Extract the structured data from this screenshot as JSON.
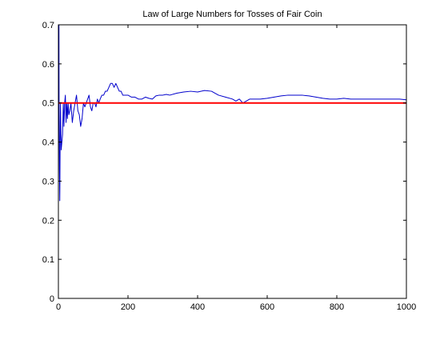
{
  "chart_data": {
    "type": "line",
    "title": "Law of Large Numbers for Tosses of Fair Coin",
    "xlabel": "",
    "ylabel": "",
    "xlim": [
      0,
      1000
    ],
    "ylim": [
      0,
      0.7
    ],
    "xticks": [
      "0",
      "200",
      "400",
      "600",
      "800",
      "1000"
    ],
    "yticks": [
      "0",
      "0.1",
      "0.2",
      "0.3",
      "0.4",
      "0.5",
      "0.6",
      "0.7"
    ],
    "grid": false,
    "series": [
      {
        "color": "#0000cc",
        "x": [
          1,
          2,
          3,
          4,
          5,
          6,
          7,
          8,
          10,
          12,
          14,
          16,
          18,
          20,
          22,
          24,
          26,
          28,
          30,
          33,
          36,
          40,
          44,
          48,
          52,
          56,
          60,
          64,
          68,
          72,
          76,
          80,
          84,
          88,
          92,
          96,
          100,
          104,
          108,
          112,
          116,
          120,
          125,
          130,
          135,
          140,
          145,
          150,
          155,
          160,
          165,
          170,
          175,
          180,
          185,
          190,
          200,
          210,
          220,
          230,
          240,
          250,
          260,
          270,
          280,
          290,
          300,
          310,
          320,
          340,
          360,
          380,
          400,
          420,
          440,
          460,
          480,
          500,
          510,
          520,
          530,
          540,
          550,
          560,
          580,
          600,
          620,
          640,
          660,
          680,
          700,
          720,
          740,
          760,
          780,
          800,
          820,
          840,
          860,
          880,
          900,
          920,
          940,
          960,
          980,
          1000
        ],
        "y": [
          1.0,
          0.5,
          0.33,
          0.25,
          0.4,
          0.5,
          0.43,
          0.38,
          0.4,
          0.42,
          0.5,
          0.44,
          0.5,
          0.52,
          0.45,
          0.5,
          0.46,
          0.5,
          0.47,
          0.48,
          0.5,
          0.45,
          0.48,
          0.5,
          0.52,
          0.48,
          0.47,
          0.44,
          0.46,
          0.5,
          0.49,
          0.5,
          0.51,
          0.52,
          0.49,
          0.48,
          0.5,
          0.5,
          0.49,
          0.51,
          0.5,
          0.51,
          0.52,
          0.52,
          0.53,
          0.53,
          0.54,
          0.55,
          0.55,
          0.54,
          0.55,
          0.54,
          0.53,
          0.53,
          0.52,
          0.52,
          0.52,
          0.515,
          0.515,
          0.51,
          0.51,
          0.515,
          0.512,
          0.51,
          0.518,
          0.52,
          0.52,
          0.522,
          0.52,
          0.525,
          0.528,
          0.53,
          0.528,
          0.532,
          0.53,
          0.52,
          0.515,
          0.51,
          0.505,
          0.51,
          0.5,
          0.505,
          0.51,
          0.51,
          0.51,
          0.512,
          0.515,
          0.518,
          0.52,
          0.52,
          0.52,
          0.518,
          0.515,
          0.512,
          0.51,
          0.51,
          0.512,
          0.51,
          0.51,
          0.51,
          0.51,
          0.51,
          0.51,
          0.51,
          0.51,
          0.508
        ]
      },
      {
        "color": "#ff0000",
        "x": [
          0,
          1000
        ],
        "y": [
          0.5,
          0.5
        ]
      }
    ]
  }
}
